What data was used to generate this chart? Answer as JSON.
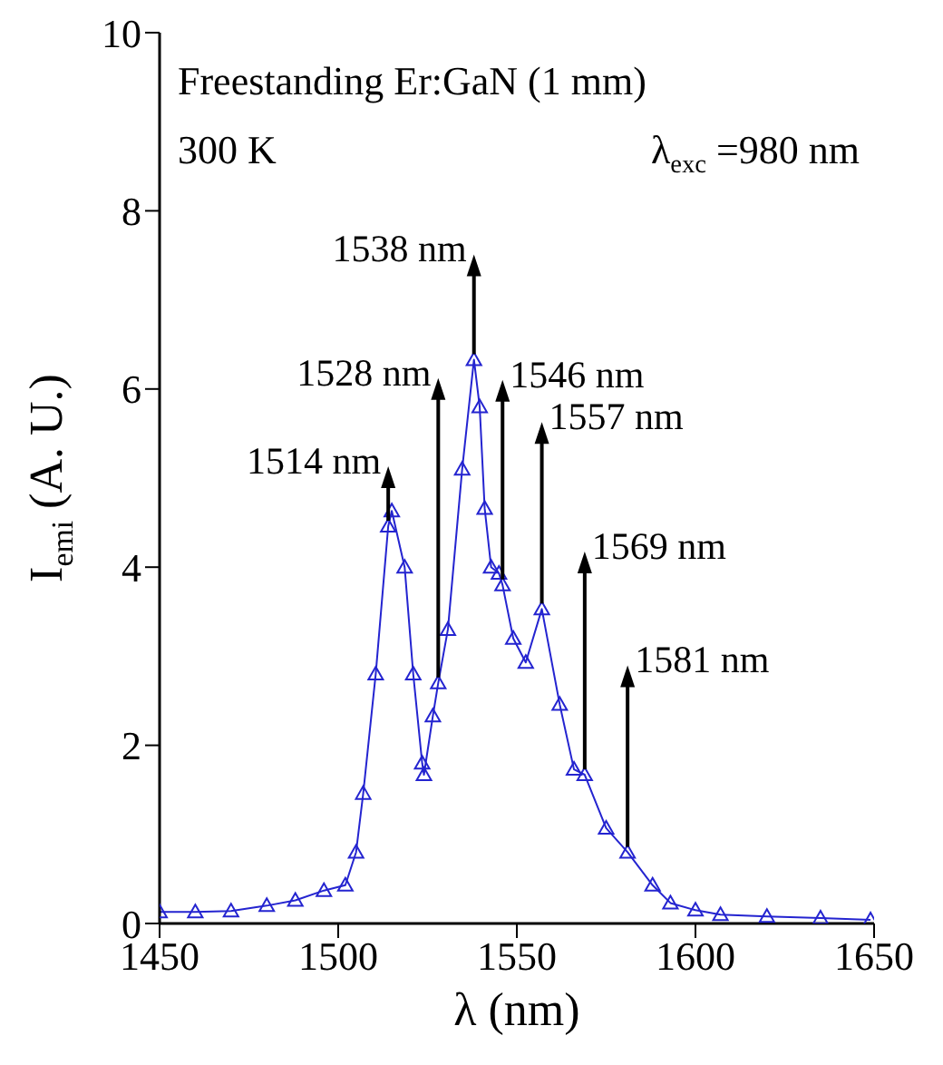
{
  "chart_data": {
    "type": "line",
    "xlabel": "λ (nm)",
    "ylabel": "I$_{emi}$ (A. U.)",
    "x": [
      1450,
      1460,
      1470,
      1480,
      1488,
      1496,
      1502,
      1505,
      1507,
      1510.5,
      1514,
      1515,
      1518.6,
      1521,
      1523.5,
      1524,
      1526.5,
      1528,
      1530.7,
      1534.7,
      1538,
      1539.6,
      1541,
      1542.8,
      1545,
      1546,
      1549,
      1552.5,
      1557,
      1562,
      1566,
      1569,
      1575,
      1581,
      1588,
      1593,
      1600,
      1607,
      1620,
      1635,
      1649
    ],
    "series": [
      {
        "color": "#2424d0",
        "values": [
          0.13,
          0.13,
          0.14,
          0.2,
          0.26,
          0.37,
          0.43,
          0.8,
          1.46,
          2.8,
          4.46,
          4.63,
          4.0,
          2.8,
          1.8,
          1.67,
          2.33,
          2.7,
          3.3,
          5.1,
          6.33,
          5.8,
          4.66,
          4.0,
          3.93,
          3.8,
          3.2,
          2.93,
          3.53,
          2.46,
          1.73,
          1.67,
          1.07,
          0.8,
          0.43,
          0.23,
          0.15,
          0.1,
          0.08,
          0.06,
          0.04
        ]
      }
    ],
    "xlim": [
      1450,
      1650
    ],
    "xticks": [
      1450,
      1500,
      1550,
      1600,
      1650
    ],
    "ylim": [
      0,
      10
    ],
    "yticks": [
      0,
      2,
      4,
      6,
      8,
      10
    ],
    "marker": "triangle",
    "line_style": "solid",
    "grid": false,
    "legend": false,
    "annotations": [
      "Freestanding Er:GaN (1 mm)",
      "300 K",
      "λ$_{exc}$ =980 nm",
      {
        "text": "1514 nm",
        "x": 1514,
        "y": 4.46
      },
      {
        "text": "1528 nm",
        "x": 1528,
        "y": 2.7
      },
      {
        "text": "1538 nm",
        "x": 1538,
        "y": 6.33
      },
      {
        "text": "1546 nm",
        "x": 1546,
        "y": 3.8
      },
      {
        "text": "1557 nm",
        "x": 1557,
        "y": 3.53
      },
      {
        "text": "1569 nm",
        "x": 1569,
        "y": 1.67
      },
      {
        "text": "1581 nm",
        "x": 1581,
        "y": 0.8
      }
    ]
  }
}
